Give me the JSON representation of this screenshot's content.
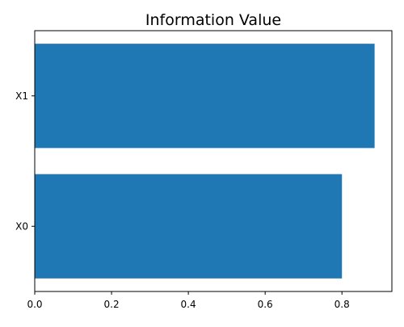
{
  "chart_data": {
    "type": "bar",
    "orientation": "horizontal",
    "title": "Information Value",
    "xlabel": "",
    "ylabel": "",
    "categories": [
      "X0",
      "X1"
    ],
    "values": [
      0.8,
      0.885
    ],
    "xlim": [
      0,
      0.93
    ],
    "xticks": [
      0.0,
      0.2,
      0.4,
      0.6,
      0.8
    ],
    "xtick_labels": [
      "0.0",
      "0.2",
      "0.4",
      "0.6",
      "0.8"
    ],
    "grid": false,
    "legend": "none",
    "bar_color": "#1f77b4"
  }
}
